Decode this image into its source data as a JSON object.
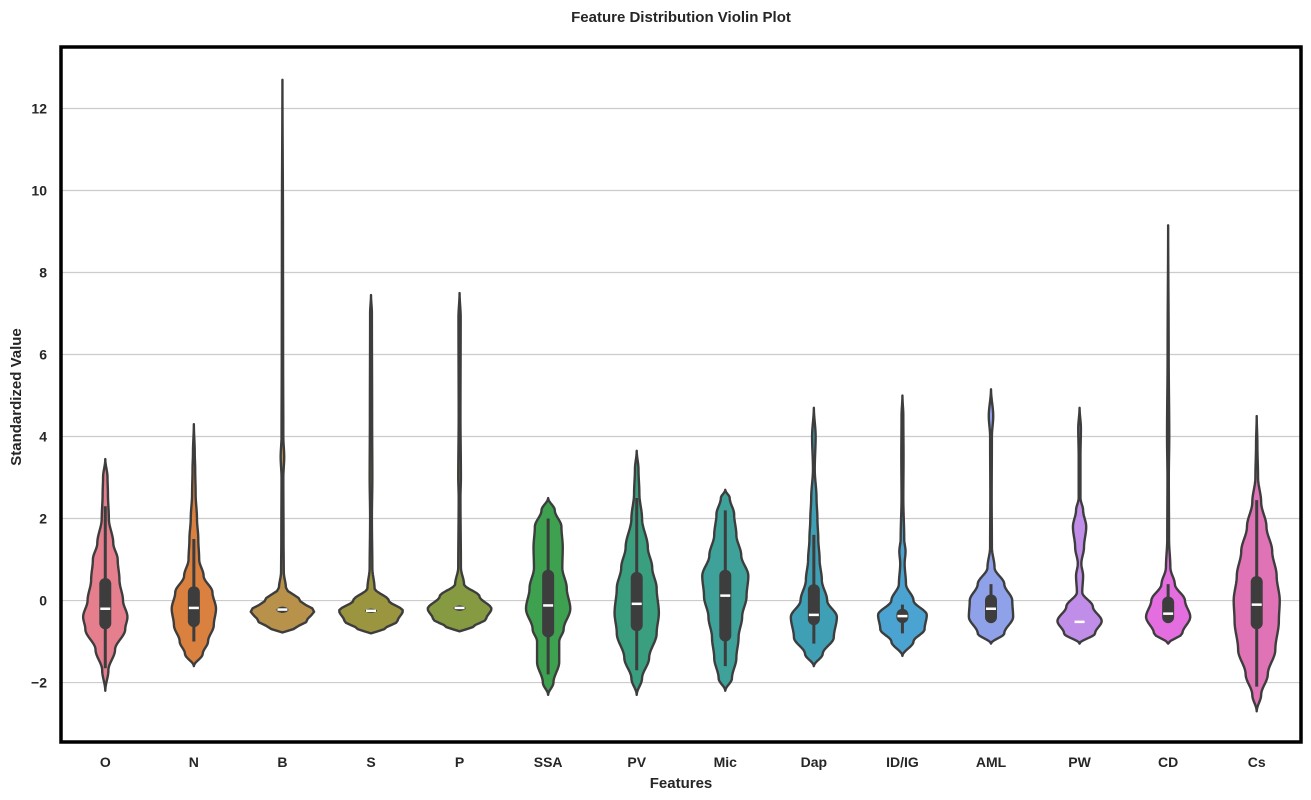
{
  "chart_data": {
    "type": "violin",
    "title": "Feature Distribution Violin Plot",
    "xlabel": "Features",
    "ylabel": "Standardized Value",
    "ylim": [
      -3.45,
      13.5
    ],
    "yticks": [
      -2,
      0,
      2,
      4,
      6,
      8,
      10,
      12
    ],
    "ytick_labels": [
      "−2",
      "0",
      "2",
      "4",
      "6",
      "8",
      "10",
      "12"
    ],
    "grid": "horizontal",
    "categories": [
      "O",
      "N",
      "B",
      "S",
      "P",
      "SSA",
      "PV",
      "Mic",
      "Dap",
      "ID/IG",
      "AML",
      "PW",
      "CD",
      "Cs"
    ],
    "series": [
      {
        "color": "#e57f8e",
        "min": -2.2,
        "max": 3.45,
        "q1": -0.7,
        "median": -0.2,
        "q3": 0.55,
        "whisker_low": -1.65,
        "whisker_high": 2.3,
        "profile": [
          [
            -2.2,
            0
          ],
          [
            -1.7,
            0.07
          ],
          [
            -1.2,
            0.22
          ],
          [
            -0.7,
            0.45
          ],
          [
            -0.4,
            0.5
          ],
          [
            0.0,
            0.4
          ],
          [
            0.5,
            0.32
          ],
          [
            1.0,
            0.28
          ],
          [
            1.4,
            0.18
          ],
          [
            2.0,
            0.08
          ],
          [
            2.6,
            0.06
          ],
          [
            3.0,
            0.05
          ],
          [
            3.45,
            0
          ]
        ]
      },
      {
        "color": "#db8140",
        "min": -1.6,
        "max": 4.3,
        "q1": -0.65,
        "median": -0.18,
        "q3": 0.35,
        "whisker_low": -1.0,
        "whisker_high": 1.5,
        "profile": [
          [
            -1.6,
            0
          ],
          [
            -1.3,
            0.2
          ],
          [
            -1.0,
            0.32
          ],
          [
            -0.6,
            0.45
          ],
          [
            -0.2,
            0.5
          ],
          [
            0.2,
            0.42
          ],
          [
            0.6,
            0.22
          ],
          [
            1.0,
            0.12
          ],
          [
            1.5,
            0.1
          ],
          [
            2.0,
            0.07
          ],
          [
            2.6,
            0.04
          ],
          [
            3.2,
            0.03
          ],
          [
            3.6,
            0.02
          ],
          [
            4.3,
            0
          ]
        ]
      },
      {
        "color": "#b8914a",
        "min": -0.78,
        "max": 12.7,
        "q1": -0.3,
        "median": -0.22,
        "q3": -0.15,
        "whisker_low": -0.3,
        "whisker_high": -0.15,
        "profile": [
          [
            -0.78,
            0
          ],
          [
            -0.7,
            0.25
          ],
          [
            -0.5,
            0.55
          ],
          [
            -0.25,
            0.72
          ],
          [
            0.0,
            0.4
          ],
          [
            0.3,
            0.08
          ],
          [
            0.7,
            0.03
          ],
          [
            1.5,
            0.025
          ],
          [
            3.0,
            0.02
          ],
          [
            3.5,
            0.04
          ],
          [
            4.0,
            0.02
          ],
          [
            6.0,
            0.015
          ],
          [
            9.0,
            0.012
          ],
          [
            12.7,
            0
          ]
        ]
      },
      {
        "color": "#9b953f",
        "min": -0.8,
        "max": 7.45,
        "q1": -0.3,
        "median": -0.25,
        "q3": -0.2,
        "whisker_low": -0.3,
        "whisker_high": -0.2,
        "profile": [
          [
            -0.8,
            0
          ],
          [
            -0.7,
            0.3
          ],
          [
            -0.5,
            0.6
          ],
          [
            -0.25,
            0.72
          ],
          [
            0.0,
            0.4
          ],
          [
            0.3,
            0.08
          ],
          [
            0.8,
            0.03
          ],
          [
            2.0,
            0.02
          ],
          [
            3.0,
            0.03
          ],
          [
            4.5,
            0.025
          ],
          [
            7.0,
            0.02
          ],
          [
            7.45,
            0
          ]
        ]
      },
      {
        "color": "#869b41",
        "min": -0.75,
        "max": 7.5,
        "q1": -0.25,
        "median": -0.18,
        "q3": -0.12,
        "whisker_low": -0.25,
        "whisker_high": -0.12,
        "profile": [
          [
            -0.75,
            0
          ],
          [
            -0.65,
            0.3
          ],
          [
            -0.45,
            0.6
          ],
          [
            -0.2,
            0.72
          ],
          [
            0.1,
            0.45
          ],
          [
            0.4,
            0.1
          ],
          [
            0.8,
            0.03
          ],
          [
            2.5,
            0.02
          ],
          [
            3.0,
            0.03
          ],
          [
            4.5,
            0.02
          ],
          [
            6.9,
            0.025
          ],
          [
            7.5,
            0
          ]
        ]
      },
      {
        "color": "#3ea14f",
        "min": -2.3,
        "max": 2.5,
        "q1": -0.9,
        "median": -0.12,
        "q3": 0.75,
        "whisker_low": -1.8,
        "whisker_high": 2.0,
        "profile": [
          [
            -2.3,
            0
          ],
          [
            -2.0,
            0.12
          ],
          [
            -1.5,
            0.25
          ],
          [
            -1.0,
            0.25
          ],
          [
            -0.7,
            0.35
          ],
          [
            -0.2,
            0.5
          ],
          [
            0.3,
            0.42
          ],
          [
            0.8,
            0.32
          ],
          [
            1.3,
            0.33
          ],
          [
            1.8,
            0.3
          ],
          [
            2.2,
            0.15
          ],
          [
            2.5,
            0
          ]
        ]
      },
      {
        "color": "#3a9f7e",
        "min": -2.3,
        "max": 3.65,
        "q1": -0.75,
        "median": -0.08,
        "q3": 0.7,
        "whisker_low": -1.7,
        "whisker_high": 2.5,
        "profile": [
          [
            -2.3,
            0
          ],
          [
            -1.9,
            0.12
          ],
          [
            -1.4,
            0.28
          ],
          [
            -0.8,
            0.45
          ],
          [
            -0.3,
            0.5
          ],
          [
            0.3,
            0.45
          ],
          [
            0.8,
            0.35
          ],
          [
            1.3,
            0.25
          ],
          [
            2.0,
            0.12
          ],
          [
            2.6,
            0.06
          ],
          [
            3.2,
            0.04
          ],
          [
            3.65,
            0
          ]
        ]
      },
      {
        "color": "#3ea29a",
        "min": -2.2,
        "max": 2.7,
        "q1": -1.0,
        "median": 0.12,
        "q3": 0.75,
        "whisker_low": -1.6,
        "whisker_high": 2.2,
        "profile": [
          [
            -2.2,
            0
          ],
          [
            -1.9,
            0.15
          ],
          [
            -1.4,
            0.25
          ],
          [
            -0.9,
            0.3
          ],
          [
            -0.4,
            0.38
          ],
          [
            0.1,
            0.48
          ],
          [
            0.6,
            0.52
          ],
          [
            1.1,
            0.36
          ],
          [
            1.6,
            0.25
          ],
          [
            2.1,
            0.2
          ],
          [
            2.5,
            0.1
          ],
          [
            2.7,
            0
          ]
        ]
      },
      {
        "color": "#3fa0b5",
        "min": -1.6,
        "max": 4.7,
        "q1": -0.6,
        "median": -0.35,
        "q3": 0.4,
        "whisker_low": -1.05,
        "whisker_high": 1.6,
        "profile": [
          [
            -1.6,
            0
          ],
          [
            -1.3,
            0.2
          ],
          [
            -0.9,
            0.45
          ],
          [
            -0.4,
            0.52
          ],
          [
            0.0,
            0.3
          ],
          [
            0.5,
            0.18
          ],
          [
            1.0,
            0.13
          ],
          [
            1.5,
            0.1
          ],
          [
            2.0,
            0.08
          ],
          [
            2.5,
            0.06
          ],
          [
            3.2,
            0.02
          ],
          [
            4.0,
            0.04
          ],
          [
            4.7,
            0
          ]
        ]
      },
      {
        "color": "#4ba3d1",
        "min": -1.35,
        "max": 5.0,
        "q1": -0.55,
        "median": -0.38,
        "q3": -0.2,
        "whisker_low": -0.8,
        "whisker_high": -0.1,
        "profile": [
          [
            -1.35,
            0
          ],
          [
            -1.0,
            0.25
          ],
          [
            -0.7,
            0.5
          ],
          [
            -0.35,
            0.55
          ],
          [
            0.0,
            0.25
          ],
          [
            0.4,
            0.08
          ],
          [
            0.9,
            0.05
          ],
          [
            1.2,
            0.07
          ],
          [
            1.5,
            0.04
          ],
          [
            2.5,
            0.02
          ],
          [
            3.5,
            0.025
          ],
          [
            4.5,
            0.02
          ],
          [
            5.0,
            0
          ]
        ]
      },
      {
        "color": "#8fa1e8",
        "min": -1.05,
        "max": 5.15,
        "q1": -0.55,
        "median": -0.2,
        "q3": 0.15,
        "whisker_low": -0.55,
        "whisker_high": 0.4,
        "profile": [
          [
            -1.05,
            0
          ],
          [
            -0.8,
            0.3
          ],
          [
            -0.4,
            0.5
          ],
          [
            0.0,
            0.48
          ],
          [
            0.4,
            0.3
          ],
          [
            0.8,
            0.08
          ],
          [
            1.3,
            0.02
          ],
          [
            2.5,
            0.015
          ],
          [
            4.0,
            0.02
          ],
          [
            4.5,
            0.05
          ],
          [
            5.15,
            0
          ]
        ]
      },
      {
        "color": "#c08ee8",
        "min": -1.05,
        "max": 4.7,
        "q1": -0.52,
        "median": -0.52,
        "q3": -0.52,
        "whisker_low": -0.52,
        "whisker_high": -0.52,
        "profile": [
          [
            -1.05,
            0
          ],
          [
            -0.8,
            0.35
          ],
          [
            -0.5,
            0.5
          ],
          [
            -0.15,
            0.3
          ],
          [
            0.2,
            0.06
          ],
          [
            0.6,
            0.08
          ],
          [
            0.9,
            0.04
          ],
          [
            1.3,
            0.1
          ],
          [
            1.8,
            0.15
          ],
          [
            2.2,
            0.08
          ],
          [
            2.5,
            0.02
          ],
          [
            3.5,
            0.02
          ],
          [
            4.2,
            0.03
          ],
          [
            4.7,
            0
          ]
        ]
      },
      {
        "color": "#e46ee0",
        "min": -1.05,
        "max": 9.15,
        "q1": -0.55,
        "median": -0.32,
        "q3": 0.1,
        "whisker_low": -0.55,
        "whisker_high": 0.4,
        "profile": [
          [
            -1.05,
            0
          ],
          [
            -0.8,
            0.32
          ],
          [
            -0.4,
            0.5
          ],
          [
            0.0,
            0.38
          ],
          [
            0.4,
            0.15
          ],
          [
            0.8,
            0.05
          ],
          [
            1.5,
            0.02
          ],
          [
            3.0,
            0.015
          ],
          [
            4.0,
            0.025
          ],
          [
            6.0,
            0.012
          ],
          [
            9.15,
            0
          ]
        ]
      },
      {
        "color": "#e072b6",
        "min": -2.7,
        "max": 4.5,
        "q1": -0.7,
        "median": -0.1,
        "q3": 0.6,
        "whisker_low": -2.1,
        "whisker_high": 2.45,
        "profile": [
          [
            -2.7,
            0
          ],
          [
            -2.3,
            0.1
          ],
          [
            -1.8,
            0.25
          ],
          [
            -1.2,
            0.42
          ],
          [
            -0.5,
            0.5
          ],
          [
            0.0,
            0.52
          ],
          [
            0.6,
            0.45
          ],
          [
            1.2,
            0.35
          ],
          [
            1.8,
            0.22
          ],
          [
            2.4,
            0.1
          ],
          [
            3.0,
            0.03
          ],
          [
            3.8,
            0.015
          ],
          [
            4.5,
            0
          ]
        ]
      }
    ]
  }
}
